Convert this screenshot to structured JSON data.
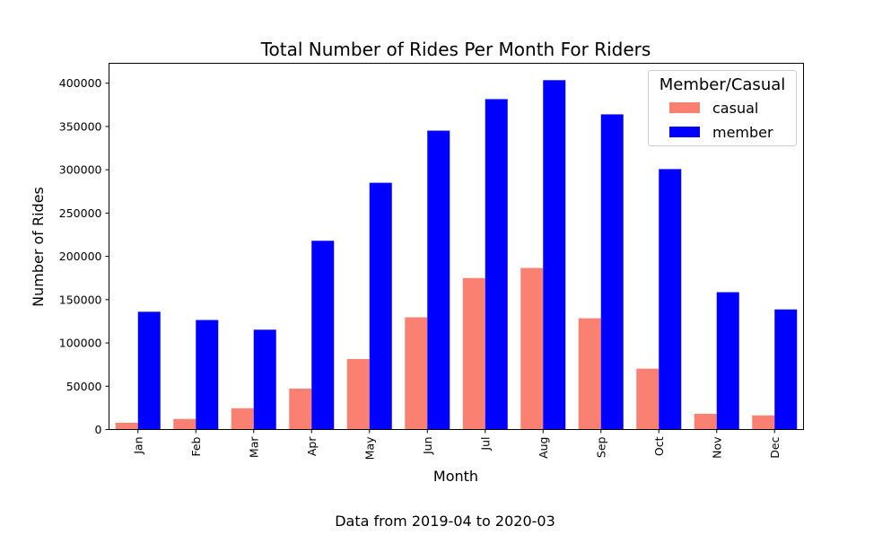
{
  "chart_data": {
    "type": "bar",
    "title": "Total Number of Rides Per Month For Riders",
    "xlabel": "Month",
    "ylabel": "Number of Rides",
    "caption": "Data from 2019-04 to 2020-03",
    "categories": [
      "Jan",
      "Feb",
      "Mar",
      "Apr",
      "May",
      "Jun",
      "Jul",
      "Aug",
      "Sep",
      "Oct",
      "Nov",
      "Dec"
    ],
    "series": [
      {
        "name": "casual",
        "color": "#fa8072",
        "values": [
          7800,
          12200,
          24600,
          47300,
          81500,
          129600,
          175000,
          186600,
          128500,
          70300,
          18200,
          16300
        ]
      },
      {
        "name": "member",
        "color": "#0000ff",
        "values": [
          136000,
          126500,
          115300,
          218000,
          285000,
          345200,
          381600,
          403500,
          364000,
          300800,
          158600,
          138700
        ]
      }
    ],
    "ylim": [
      0,
      423000
    ],
    "yticks": [
      0,
      50000,
      100000,
      150000,
      200000,
      250000,
      300000,
      350000,
      400000
    ],
    "legend": {
      "title": "Member/Casual",
      "position": "top-right"
    },
    "grid": false
  }
}
